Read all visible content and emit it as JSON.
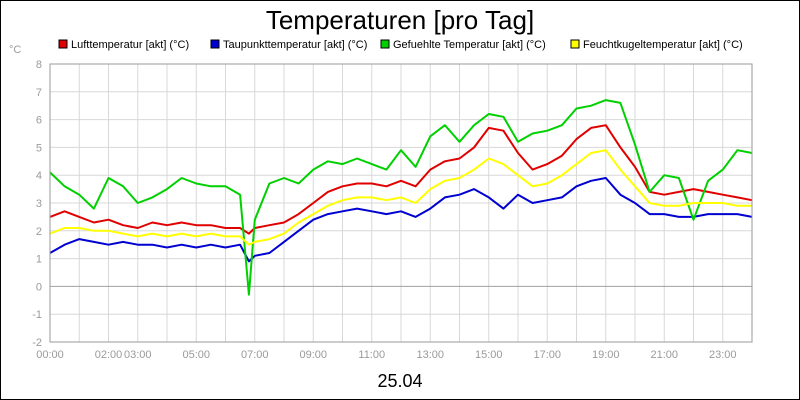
{
  "chart_data": {
    "type": "line",
    "title": "Temperaturen [pro Tag]",
    "y_unit": "°C",
    "date_label": "25.04",
    "ylim": [
      -2,
      8
    ],
    "y_ticks": [
      "8",
      "7",
      "6",
      "5",
      "4",
      "3",
      "2",
      "1",
      "0",
      "-1",
      "-2"
    ],
    "xlim": [
      0,
      24
    ],
    "x_ticks": [
      {
        "h": 0,
        "label": "00:00"
      },
      {
        "h": 2,
        "label": "02:00"
      },
      {
        "h": 3,
        "label": "03:00"
      },
      {
        "h": 5,
        "label": "05:00"
      },
      {
        "h": 7,
        "label": "07:00"
      },
      {
        "h": 9,
        "label": "09:00"
      },
      {
        "h": 11,
        "label": "11:00"
      },
      {
        "h": 13,
        "label": "13:00"
      },
      {
        "h": 15,
        "label": "15:00"
      },
      {
        "h": 17,
        "label": "17:00"
      },
      {
        "h": 19,
        "label": "19:00"
      },
      {
        "h": 21,
        "label": "21:00"
      },
      {
        "h": 23,
        "label": "23:00"
      }
    ],
    "grid": true,
    "legend_position": "top",
    "series": [
      {
        "name": "Lufttemperatur [akt] (°C)",
        "color": "#e00000",
        "x": [
          0,
          0.5,
          1,
          1.5,
          2,
          2.5,
          3,
          3.5,
          4,
          4.5,
          5,
          5.5,
          6,
          6.5,
          6.8,
          7,
          7.5,
          8,
          8.5,
          9,
          9.5,
          10,
          10.5,
          11,
          11.5,
          12,
          12.5,
          13,
          13.5,
          14,
          14.5,
          15,
          15.5,
          16,
          16.5,
          17,
          17.5,
          18,
          18.5,
          19,
          19.5,
          20,
          20.5,
          21,
          21.5,
          22,
          22.5,
          23,
          23.5,
          24
        ],
        "y": [
          2.5,
          2.7,
          2.5,
          2.3,
          2.4,
          2.2,
          2.1,
          2.3,
          2.2,
          2.3,
          2.2,
          2.2,
          2.1,
          2.1,
          1.9,
          2.1,
          2.2,
          2.3,
          2.6,
          3.0,
          3.4,
          3.6,
          3.7,
          3.7,
          3.6,
          3.8,
          3.6,
          4.2,
          4.5,
          4.6,
          5.0,
          5.7,
          5.6,
          4.8,
          4.2,
          4.4,
          4.7,
          5.3,
          5.7,
          5.8,
          5.0,
          4.3,
          3.4,
          3.3,
          3.4,
          3.5,
          3.4,
          3.3,
          3.2,
          3.1
        ]
      },
      {
        "name": "Taupunkttemperatur [akt] (°C)",
        "color": "#0000d0",
        "x": [
          0,
          0.5,
          1,
          1.5,
          2,
          2.5,
          3,
          3.5,
          4,
          4.5,
          5,
          5.5,
          6,
          6.5,
          6.8,
          7,
          7.5,
          8,
          8.5,
          9,
          9.5,
          10,
          10.5,
          11,
          11.5,
          12,
          12.5,
          13,
          13.5,
          14,
          14.5,
          15,
          15.5,
          16,
          16.5,
          17,
          17.5,
          18,
          18.5,
          19,
          19.5,
          20,
          20.5,
          21,
          21.5,
          22,
          22.5,
          23,
          23.5,
          24
        ],
        "y": [
          1.2,
          1.5,
          1.7,
          1.6,
          1.5,
          1.6,
          1.5,
          1.5,
          1.4,
          1.5,
          1.4,
          1.5,
          1.4,
          1.5,
          0.9,
          1.1,
          1.2,
          1.6,
          2.0,
          2.4,
          2.6,
          2.7,
          2.8,
          2.7,
          2.6,
          2.7,
          2.5,
          2.8,
          3.2,
          3.3,
          3.5,
          3.2,
          2.8,
          3.3,
          3.0,
          3.1,
          3.2,
          3.6,
          3.8,
          3.9,
          3.3,
          3.0,
          2.6,
          2.6,
          2.5,
          2.5,
          2.6,
          2.6,
          2.6,
          2.5
        ]
      },
      {
        "name": "Gefuehlte Temperatur [akt] (°C)",
        "color": "#00d000",
        "x": [
          0,
          0.5,
          1,
          1.5,
          2,
          2.5,
          3,
          3.5,
          4,
          4.5,
          5,
          5.5,
          6,
          6.5,
          6.8,
          7,
          7.5,
          8,
          8.5,
          9,
          9.5,
          10,
          10.5,
          11,
          11.5,
          12,
          12.5,
          13,
          13.5,
          14,
          14.5,
          15,
          15.5,
          16,
          16.5,
          17,
          17.5,
          18,
          18.5,
          19,
          19.5,
          20,
          20.5,
          21,
          21.5,
          22,
          22.5,
          23,
          23.5,
          24
        ],
        "y": [
          4.1,
          3.6,
          3.3,
          2.8,
          3.9,
          3.6,
          3.0,
          3.2,
          3.5,
          3.9,
          3.7,
          3.6,
          3.6,
          3.3,
          -0.3,
          2.4,
          3.7,
          3.9,
          3.7,
          4.2,
          4.5,
          4.4,
          4.6,
          4.4,
          4.2,
          4.9,
          4.3,
          5.4,
          5.8,
          5.2,
          5.8,
          6.2,
          6.1,
          5.2,
          5.5,
          5.6,
          5.8,
          6.4,
          6.5,
          6.7,
          6.6,
          5.1,
          3.4,
          4.0,
          3.9,
          2.4,
          3.8,
          4.2,
          4.9,
          4.8
        ]
      },
      {
        "name": "Feuchtkugeltemperatur [akt] (°C)",
        "color": "#ffff00",
        "x": [
          0,
          0.5,
          1,
          1.5,
          2,
          2.5,
          3,
          3.5,
          4,
          4.5,
          5,
          5.5,
          6,
          6.5,
          6.8,
          7,
          7.5,
          8,
          8.5,
          9,
          9.5,
          10,
          10.5,
          11,
          11.5,
          12,
          12.5,
          13,
          13.5,
          14,
          14.5,
          15,
          15.5,
          16,
          16.5,
          17,
          17.5,
          18,
          18.5,
          19,
          19.5,
          20,
          20.5,
          21,
          21.5,
          22,
          22.5,
          23,
          23.5,
          24
        ],
        "y": [
          1.9,
          2.1,
          2.1,
          2.0,
          2.0,
          1.9,
          1.8,
          1.9,
          1.8,
          1.9,
          1.8,
          1.9,
          1.8,
          1.8,
          1.5,
          1.6,
          1.7,
          1.9,
          2.3,
          2.6,
          2.9,
          3.1,
          3.2,
          3.2,
          3.1,
          3.2,
          3.0,
          3.5,
          3.8,
          3.9,
          4.2,
          4.6,
          4.4,
          4.0,
          3.6,
          3.7,
          4.0,
          4.4,
          4.8,
          4.9,
          4.2,
          3.6,
          3.0,
          2.9,
          2.9,
          3.0,
          3.0,
          3.0,
          2.9,
          2.9
        ]
      }
    ]
  }
}
